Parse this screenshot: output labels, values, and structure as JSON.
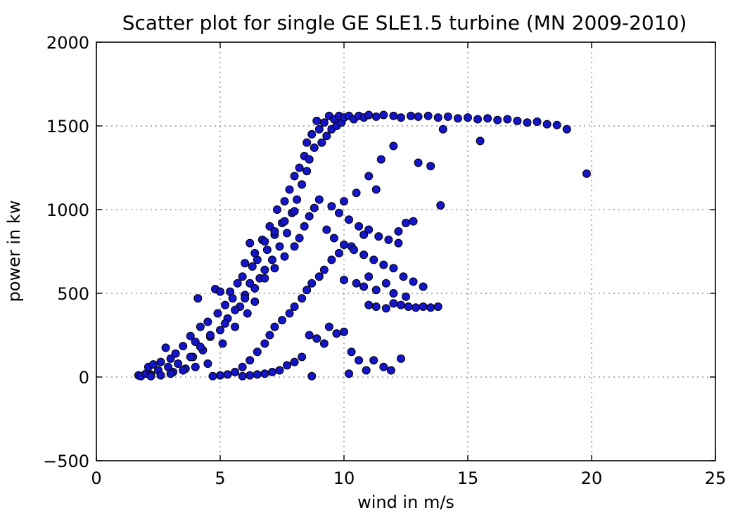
{
  "chart_data": {
    "type": "scatter",
    "title": "Scatter plot for single GE SLE1.5 turbine (MN 2009-2010)",
    "xlabel": "wind in m/s",
    "ylabel": "power in kw",
    "xlim": [
      0,
      25
    ],
    "ylim": [
      -500,
      2000
    ],
    "xticks": [
      "0",
      "5",
      "10",
      "15",
      "20",
      "25"
    ],
    "yticks": [
      "2000",
      "1500",
      "1000",
      "500",
      "0",
      "−500"
    ],
    "grid": true,
    "marker_color": "#1414c8",
    "points": [
      [
        1.7,
        10
      ],
      [
        1.8,
        5
      ],
      [
        2.0,
        20
      ],
      [
        2.1,
        60
      ],
      [
        2.2,
        15
      ],
      [
        2.3,
        75
      ],
      [
        2.5,
        40
      ],
      [
        2.6,
        90
      ],
      [
        2.8,
        175
      ],
      [
        2.9,
        60
      ],
      [
        3.0,
        110
      ],
      [
        3.1,
        30
      ],
      [
        3.2,
        140
      ],
      [
        3.3,
        80
      ],
      [
        3.5,
        185
      ],
      [
        3.6,
        50
      ],
      [
        3.8,
        245
      ],
      [
        3.9,
        120
      ],
      [
        4.0,
        210
      ],
      [
        4.1,
        470
      ],
      [
        4.2,
        300
      ],
      [
        4.3,
        160
      ],
      [
        4.5,
        330
      ],
      [
        4.6,
        240
      ],
      [
        4.8,
        525
      ],
      [
        4.9,
        380
      ],
      [
        5.0,
        510
      ],
      [
        5.0,
        280
      ],
      [
        5.1,
        200
      ],
      [
        5.2,
        430
      ],
      [
        5.3,
        350
      ],
      [
        5.4,
        510
      ],
      [
        5.5,
        470
      ],
      [
        5.6,
        300
      ],
      [
        5.7,
        560
      ],
      [
        5.8,
        420
      ],
      [
        5.9,
        600
      ],
      [
        6.0,
        490
      ],
      [
        6.0,
        680
      ],
      [
        6.1,
        380
      ],
      [
        6.2,
        560
      ],
      [
        6.2,
        800
      ],
      [
        6.3,
        660
      ],
      [
        6.4,
        450
      ],
      [
        6.5,
        700
      ],
      [
        6.6,
        590
      ],
      [
        6.7,
        820
      ],
      [
        6.8,
        640
      ],
      [
        6.9,
        760
      ],
      [
        7.0,
        900
      ],
      [
        7.1,
        700
      ],
      [
        7.2,
        850
      ],
      [
        7.3,
        1000
      ],
      [
        7.4,
        780
      ],
      [
        7.5,
        920
      ],
      [
        7.6,
        1050
      ],
      [
        7.7,
        860
      ],
      [
        7.8,
        1120
      ],
      [
        7.9,
        980
      ],
      [
        8.0,
        1200
      ],
      [
        8.1,
        1060
      ],
      [
        8.2,
        1250
      ],
      [
        8.3,
        1150
      ],
      [
        8.4,
        1320
      ],
      [
        8.5,
        1230
      ],
      [
        8.5,
        1400
      ],
      [
        8.6,
        1300
      ],
      [
        8.7,
        1450
      ],
      [
        8.8,
        1370
      ],
      [
        8.9,
        1530
      ],
      [
        9.0,
        1480
      ],
      [
        9.1,
        1400
      ],
      [
        9.2,
        1520
      ],
      [
        9.3,
        1440
      ],
      [
        9.4,
        1560
      ],
      [
        9.5,
        1480
      ],
      [
        9.6,
        1540
      ],
      [
        9.7,
        1500
      ],
      [
        9.8,
        1560
      ],
      [
        9.9,
        1520
      ],
      [
        10.0,
        1550
      ],
      [
        10.2,
        1560
      ],
      [
        10.4,
        1540
      ],
      [
        10.6,
        1560
      ],
      [
        10.8,
        1550
      ],
      [
        11.0,
        1565
      ],
      [
        11.3,
        1555
      ],
      [
        11.6,
        1565
      ],
      [
        12.0,
        1560
      ],
      [
        12.3,
        1550
      ],
      [
        12.7,
        1560
      ],
      [
        13.0,
        1555
      ],
      [
        13.4,
        1560
      ],
      [
        13.8,
        1550
      ],
      [
        14.2,
        1555
      ],
      [
        14.6,
        1545
      ],
      [
        15.0,
        1550
      ],
      [
        15.4,
        1540
      ],
      [
        15.8,
        1545
      ],
      [
        16.2,
        1535
      ],
      [
        16.6,
        1540
      ],
      [
        17.0,
        1530
      ],
      [
        17.4,
        1520
      ],
      [
        17.8,
        1525
      ],
      [
        18.2,
        1510
      ],
      [
        18.6,
        1505
      ],
      [
        19.0,
        1480
      ],
      [
        19.8,
        1215
      ],
      [
        15.5,
        1410
      ],
      [
        14.0,
        1480
      ],
      [
        13.5,
        1260
      ],
      [
        13.0,
        1280
      ],
      [
        12.0,
        1380
      ],
      [
        11.5,
        1300
      ],
      [
        11.0,
        1200
      ],
      [
        10.5,
        1100
      ],
      [
        10.0,
        1050
      ],
      [
        11.3,
        1120
      ],
      [
        13.9,
        1025
      ],
      [
        12.8,
        930
      ],
      [
        12.5,
        920
      ],
      [
        12.2,
        870
      ],
      [
        10.8,
        850
      ],
      [
        10.3,
        780
      ],
      [
        9.8,
        740
      ],
      [
        9.5,
        700
      ],
      [
        9.2,
        640
      ],
      [
        9.0,
        600
      ],
      [
        8.7,
        560
      ],
      [
        8.5,
        520
      ],
      [
        8.3,
        470
      ],
      [
        8.0,
        420
      ],
      [
        7.8,
        380
      ],
      [
        7.5,
        340
      ],
      [
        7.2,
        300
      ],
      [
        7.0,
        250
      ],
      [
        6.8,
        200
      ],
      [
        6.5,
        150
      ],
      [
        6.2,
        100
      ],
      [
        5.9,
        60
      ],
      [
        5.6,
        30
      ],
      [
        5.3,
        15
      ],
      [
        5.0,
        10
      ],
      [
        4.7,
        5
      ],
      [
        10.0,
        580
      ],
      [
        10.5,
        560
      ],
      [
        10.8,
        540
      ],
      [
        11.0,
        600
      ],
      [
        11.3,
        520
      ],
      [
        11.7,
        560
      ],
      [
        12.0,
        500
      ],
      [
        12.5,
        480
      ],
      [
        11.0,
        430
      ],
      [
        11.3,
        420
      ],
      [
        11.7,
        410
      ],
      [
        12.0,
        440
      ],
      [
        12.3,
        430
      ],
      [
        12.6,
        420
      ],
      [
        12.9,
        415
      ],
      [
        13.2,
        420
      ],
      [
        13.5,
        415
      ],
      [
        13.8,
        420
      ],
      [
        10.0,
        270
      ],
      [
        10.3,
        150
      ],
      [
        10.6,
        100
      ],
      [
        10.9,
        40
      ],
      [
        11.2,
        100
      ],
      [
        11.6,
        60
      ],
      [
        11.9,
        40
      ],
      [
        12.3,
        110
      ],
      [
        10.2,
        20
      ],
      [
        8.7,
        5
      ],
      [
        9.4,
        300
      ],
      [
        9.7,
        260
      ],
      [
        9.2,
        200
      ],
      [
        8.9,
        230
      ],
      [
        8.6,
        250
      ],
      [
        8.3,
        120
      ],
      [
        8.0,
        90
      ],
      [
        7.7,
        70
      ],
      [
        7.4,
        40
      ],
      [
        7.1,
        30
      ],
      [
        6.8,
        20
      ],
      [
        6.5,
        15
      ],
      [
        6.2,
        10
      ],
      [
        5.9,
        5
      ],
      [
        4.5,
        80
      ],
      [
        4.0,
        60
      ],
      [
        3.5,
        40
      ],
      [
        3.0,
        20
      ],
      [
        2.6,
        10
      ],
      [
        2.2,
        5
      ],
      [
        9.5,
        1020
      ],
      [
        9.8,
        980
      ],
      [
        10.2,
        940
      ],
      [
        10.6,
        900
      ],
      [
        11.0,
        880
      ],
      [
        11.4,
        840
      ],
      [
        11.8,
        820
      ],
      [
        12.2,
        800
      ],
      [
        9.3,
        880
      ],
      [
        9.6,
        830
      ],
      [
        10.0,
        790
      ],
      [
        10.4,
        760
      ],
      [
        10.8,
        730
      ],
      [
        11.2,
        700
      ],
      [
        11.6,
        670
      ],
      [
        12.0,
        650
      ],
      [
        12.4,
        600
      ],
      [
        12.8,
        570
      ],
      [
        13.2,
        540
      ],
      [
        8.2,
        830
      ],
      [
        8.4,
        900
      ],
      [
        8.6,
        960
      ],
      [
        8.8,
        1010
      ],
      [
        9.0,
        1060
      ],
      [
        6.4,
        740
      ],
      [
        6.8,
        810
      ],
      [
        7.2,
        870
      ],
      [
        7.6,
        930
      ],
      [
        8.0,
        990
      ],
      [
        3.8,
        120
      ],
      [
        4.2,
        180
      ],
      [
        4.6,
        250
      ],
      [
        5.2,
        320
      ],
      [
        5.6,
        400
      ],
      [
        6.0,
        470
      ],
      [
        6.4,
        530
      ],
      [
        6.8,
        590
      ],
      [
        7.2,
        650
      ],
      [
        7.6,
        720
      ],
      [
        8.0,
        780
      ]
    ]
  }
}
